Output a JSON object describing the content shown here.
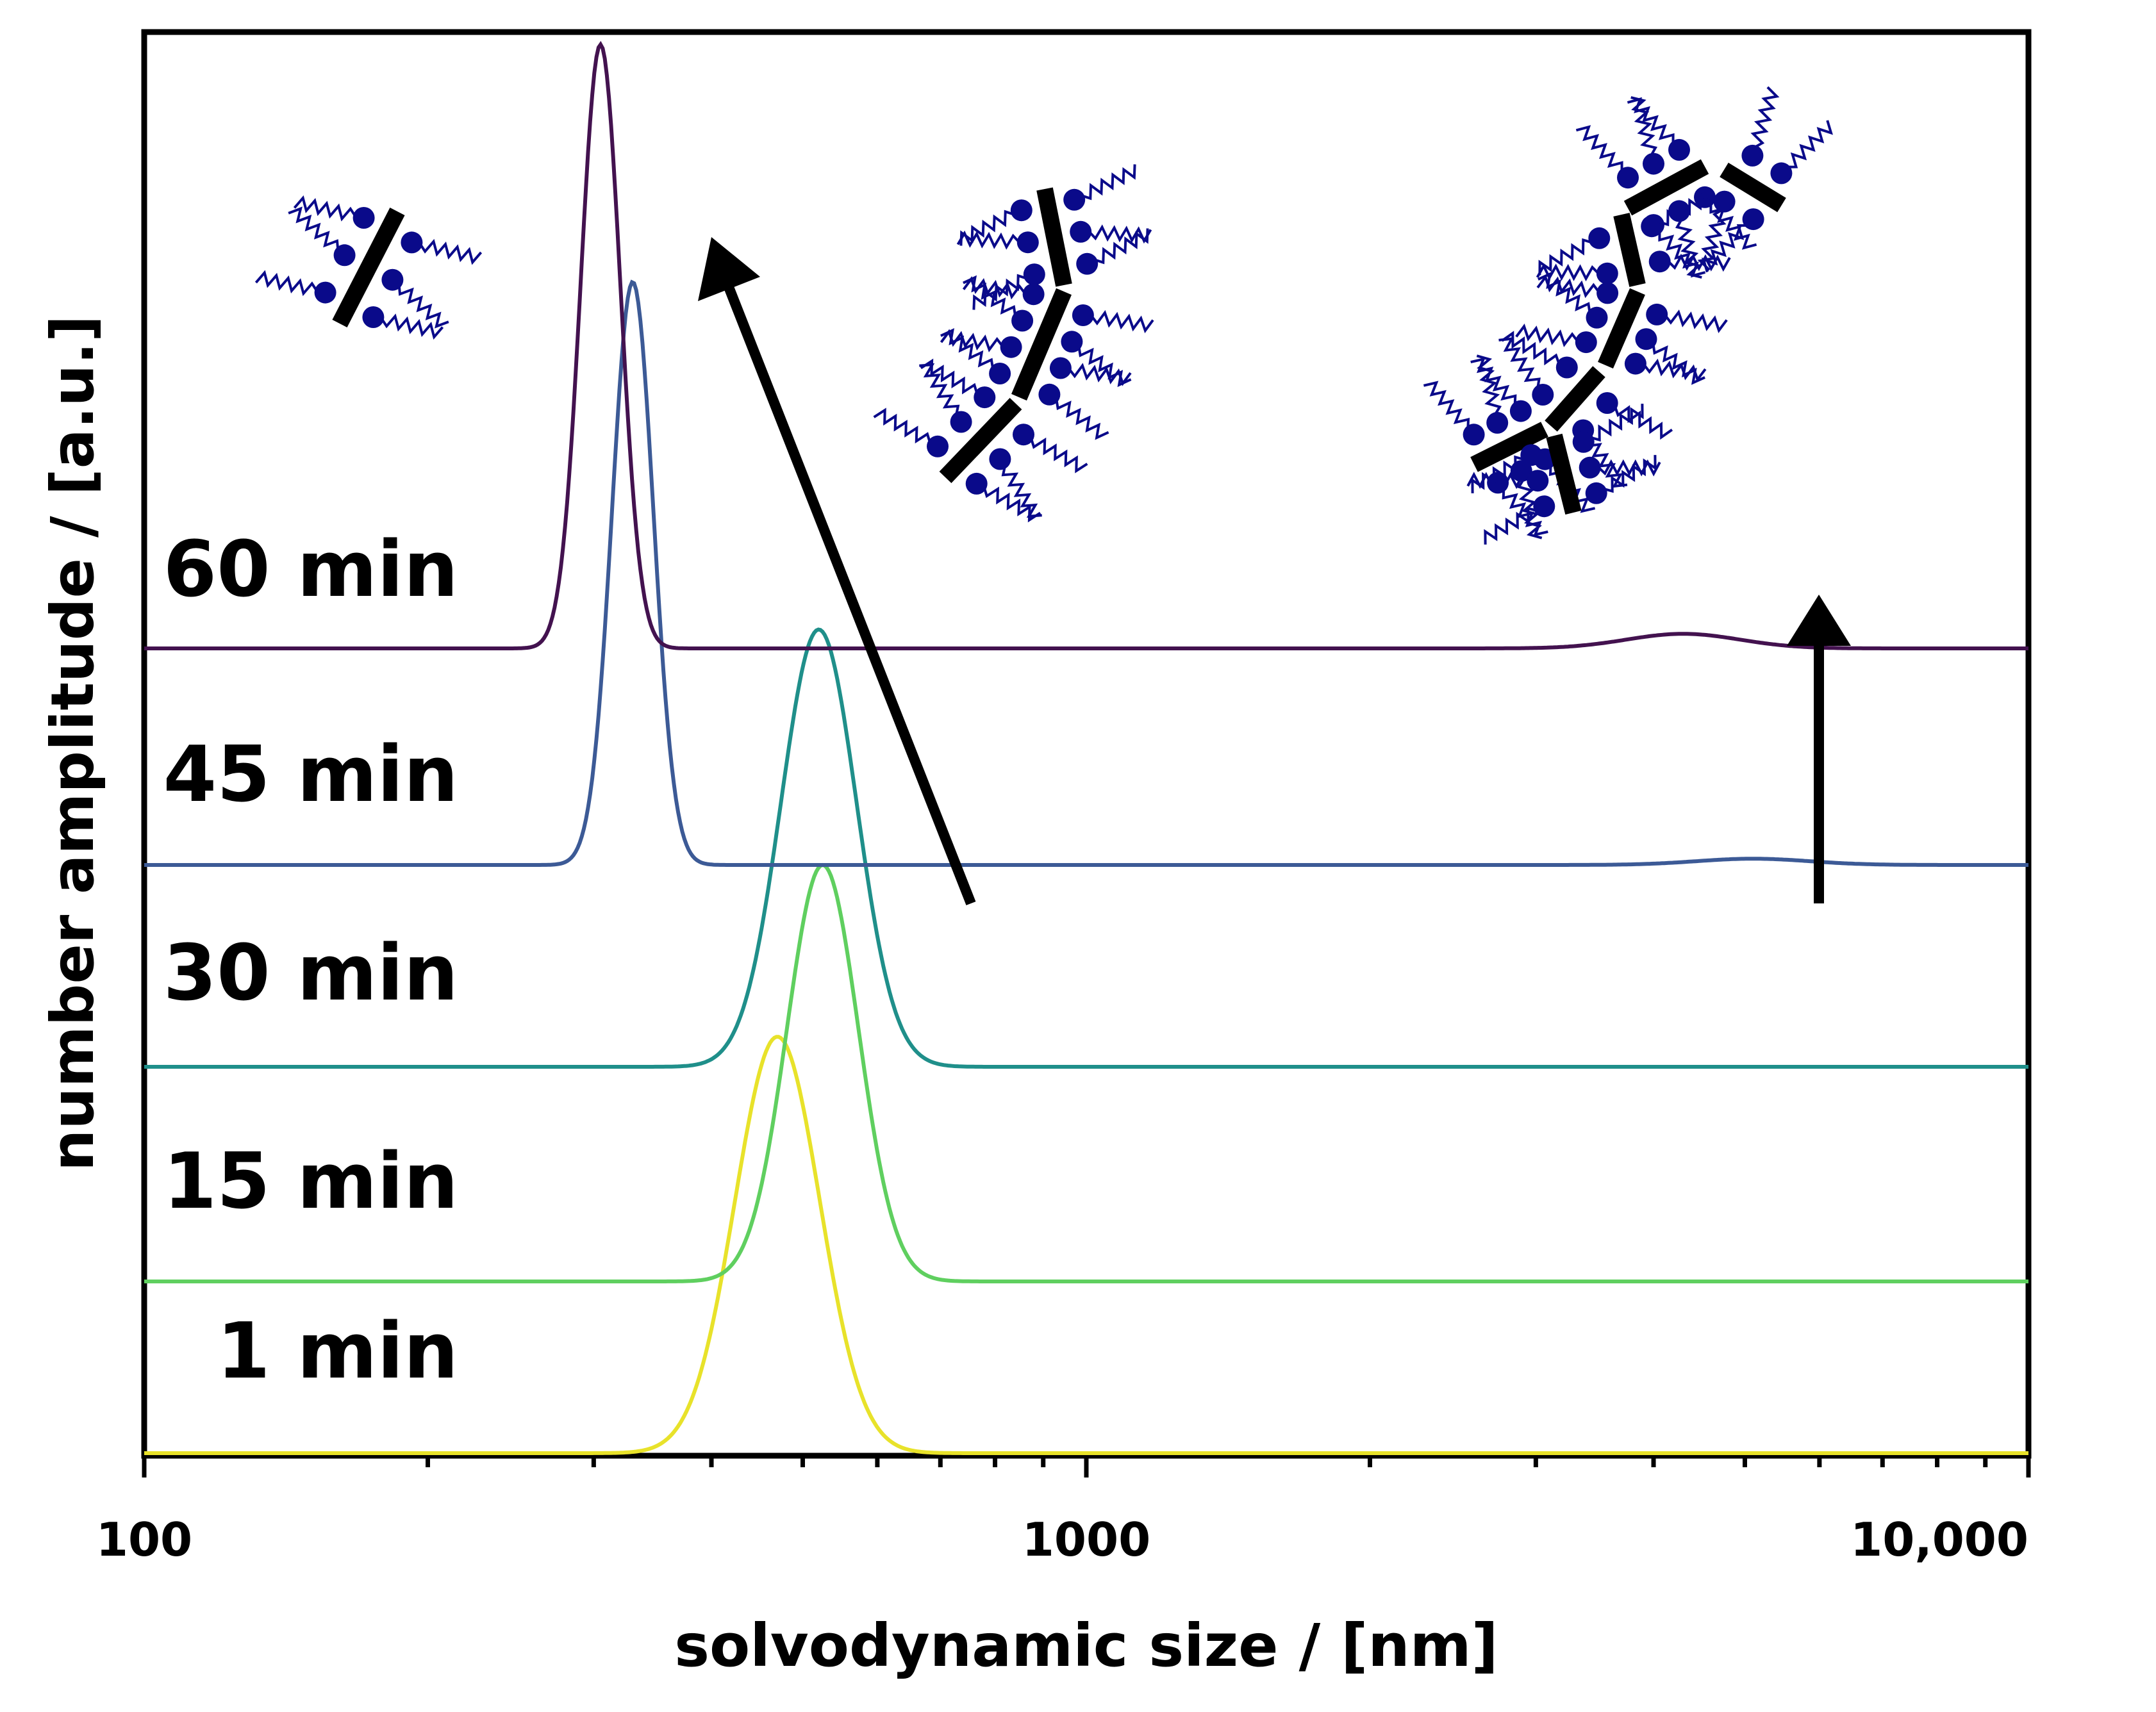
{
  "chart_data": {
    "type": "line",
    "xlabel": "solvodynamic size / [nm]",
    "ylabel": "number amplitude / [a.u.]",
    "x_scale": "log",
    "xlim": [
      100,
      10000
    ],
    "x_ticks": [
      "100",
      "1000",
      "10,000"
    ],
    "y_ticks": [],
    "grid": false,
    "legend": "none",
    "series": [
      {
        "name": "1 min",
        "color": "#e8e22a",
        "baseline": 0.0,
        "peaks": [
          {
            "center_nm": 470,
            "height": 1.0,
            "width_log10": 0.045
          }
        ]
      },
      {
        "name": "15 min",
        "color": "#5fcf5f",
        "baseline": 0.5,
        "peaks": [
          {
            "center_nm": 525,
            "height": 1.0,
            "width_log10": 0.038
          }
        ]
      },
      {
        "name": "30 min",
        "color": "#1f8f8a",
        "baseline": 1.0,
        "peaks": [
          {
            "center_nm": 520,
            "height": 1.05,
            "width_log10": 0.04
          }
        ]
      },
      {
        "name": "45 min",
        "color": "#3c5a96",
        "baseline": 1.5,
        "peaks": [
          {
            "center_nm": 330,
            "height": 1.4,
            "width_log10": 0.022
          },
          {
            "center_nm": 5100,
            "height": 0.015,
            "width_log10": 0.06
          }
        ]
      },
      {
        "name": "60 min",
        "color": "#43124f",
        "baseline": 2.0,
        "peaks": [
          {
            "center_nm": 305,
            "height": 1.45,
            "width_log10": 0.021
          },
          {
            "center_nm": 4300,
            "height": 0.035,
            "width_log10": 0.06
          }
        ]
      }
    ],
    "annotations": [
      {
        "type": "arrow",
        "from_nm": 740,
        "to_nm": 440,
        "direction": "up-left"
      },
      {
        "type": "arrow",
        "from_nm": 6800,
        "to_nm": 6800,
        "direction": "up"
      },
      {
        "type": "schematic",
        "name": "single-rod-micelle",
        "near_nm": 160
      },
      {
        "type": "schematic",
        "name": "short-chain-micelle",
        "near_nm": 900
      },
      {
        "type": "schematic",
        "name": "branched-chain-micelle",
        "near_nm": 4200
      }
    ],
    "colors": {
      "axis": "#000000",
      "schematic": "#0a0a8a",
      "rod": "#000000"
    }
  }
}
